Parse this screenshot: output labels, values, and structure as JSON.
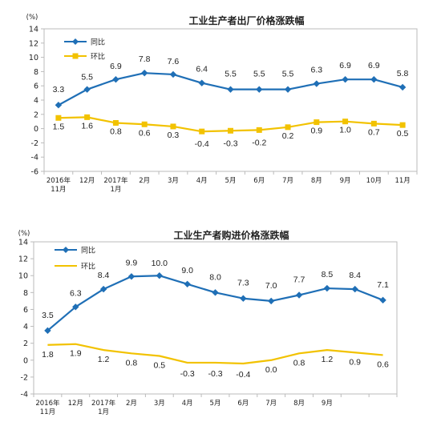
{
  "chart_data": [
    {
      "type": "line",
      "title": "工业生产者出厂价格涨跌幅",
      "unit_label": "(%)",
      "categories": [
        "2016年\n11月",
        "12月",
        "2017年\n1月",
        "2月",
        "3月",
        "4月",
        "5月",
        "6月",
        "7月",
        "8月",
        "9月",
        "10月",
        "11月"
      ],
      "ylim": [
        -6,
        14
      ],
      "yticks": [
        -6,
        -4,
        -2,
        0,
        2,
        4,
        6,
        8,
        10,
        12,
        14
      ],
      "series": [
        {
          "name": "同比",
          "color": "#1f6fb6",
          "marker": "diamond",
          "values": [
            3.3,
            5.5,
            6.9,
            7.8,
            7.6,
            6.4,
            5.5,
            5.5,
            5.5,
            6.3,
            6.9,
            6.9,
            5.8
          ],
          "labels": [
            "3.3",
            "5.5",
            "6.9",
            "7.8",
            "7.6",
            "6.4",
            "5.5",
            "5.5",
            "5.5",
            "6.3",
            "6.9",
            "6.9",
            "5.8"
          ]
        },
        {
          "name": "环比",
          "color": "#f2c200",
          "marker": "square",
          "values": [
            1.5,
            1.6,
            0.8,
            0.6,
            0.3,
            -0.4,
            -0.3,
            -0.2,
            0.2,
            0.9,
            1.0,
            0.7,
            0.5
          ],
          "labels": [
            "1.5",
            "1.6",
            "0.8",
            "0.6",
            "0.3",
            "-0.4",
            "-0.3",
            "-0.2",
            "0.2",
            "0.9",
            "1.0",
            "0.7",
            "0.5"
          ]
        }
      ],
      "legend_position": "top-left"
    },
    {
      "type": "line",
      "title": "工业生产者购进价格涨跌幅",
      "unit_label": "(%)",
      "categories": [
        "2016年\n11月",
        "12月",
        "2017年\n1月",
        "2月",
        "3月",
        "4月",
        "5月",
        "6月",
        "7月",
        "8月",
        "9月",
        "",
        ""
      ],
      "ylim": [
        -4,
        14
      ],
      "yticks": [
        -4,
        -2,
        0,
        2,
        4,
        6,
        8,
        10,
        12,
        14
      ],
      "series": [
        {
          "name": "同比",
          "color": "#1f6fb6",
          "marker": "diamond",
          "values": [
            3.5,
            6.3,
            8.4,
            9.9,
            10.0,
            9.0,
            8.0,
            7.3,
            7.0,
            7.7,
            8.5,
            8.4,
            7.1
          ],
          "labels": [
            "3.5",
            "6.3",
            "8.4",
            "9.9",
            "10.0",
            "9.0",
            "8.0",
            "7.3",
            "7.0",
            "7.7",
            "8.5",
            "8.4",
            "7.1"
          ]
        },
        {
          "name": "环比",
          "color": "#f2c200",
          "marker": "line",
          "values": [
            1.8,
            1.9,
            1.2,
            0.8,
            0.5,
            -0.3,
            -0.3,
            -0.4,
            0.0,
            0.8,
            1.2,
            0.9,
            0.6
          ],
          "labels": [
            "1.8",
            "1.9",
            "1.2",
            "0.8",
            "0.5",
            "-0.3",
            "-0.3",
            "-0.4",
            "0.0",
            "0.8",
            "1.2",
            "0.9",
            "0.6"
          ]
        }
      ],
      "legend_position": "top-left"
    }
  ]
}
